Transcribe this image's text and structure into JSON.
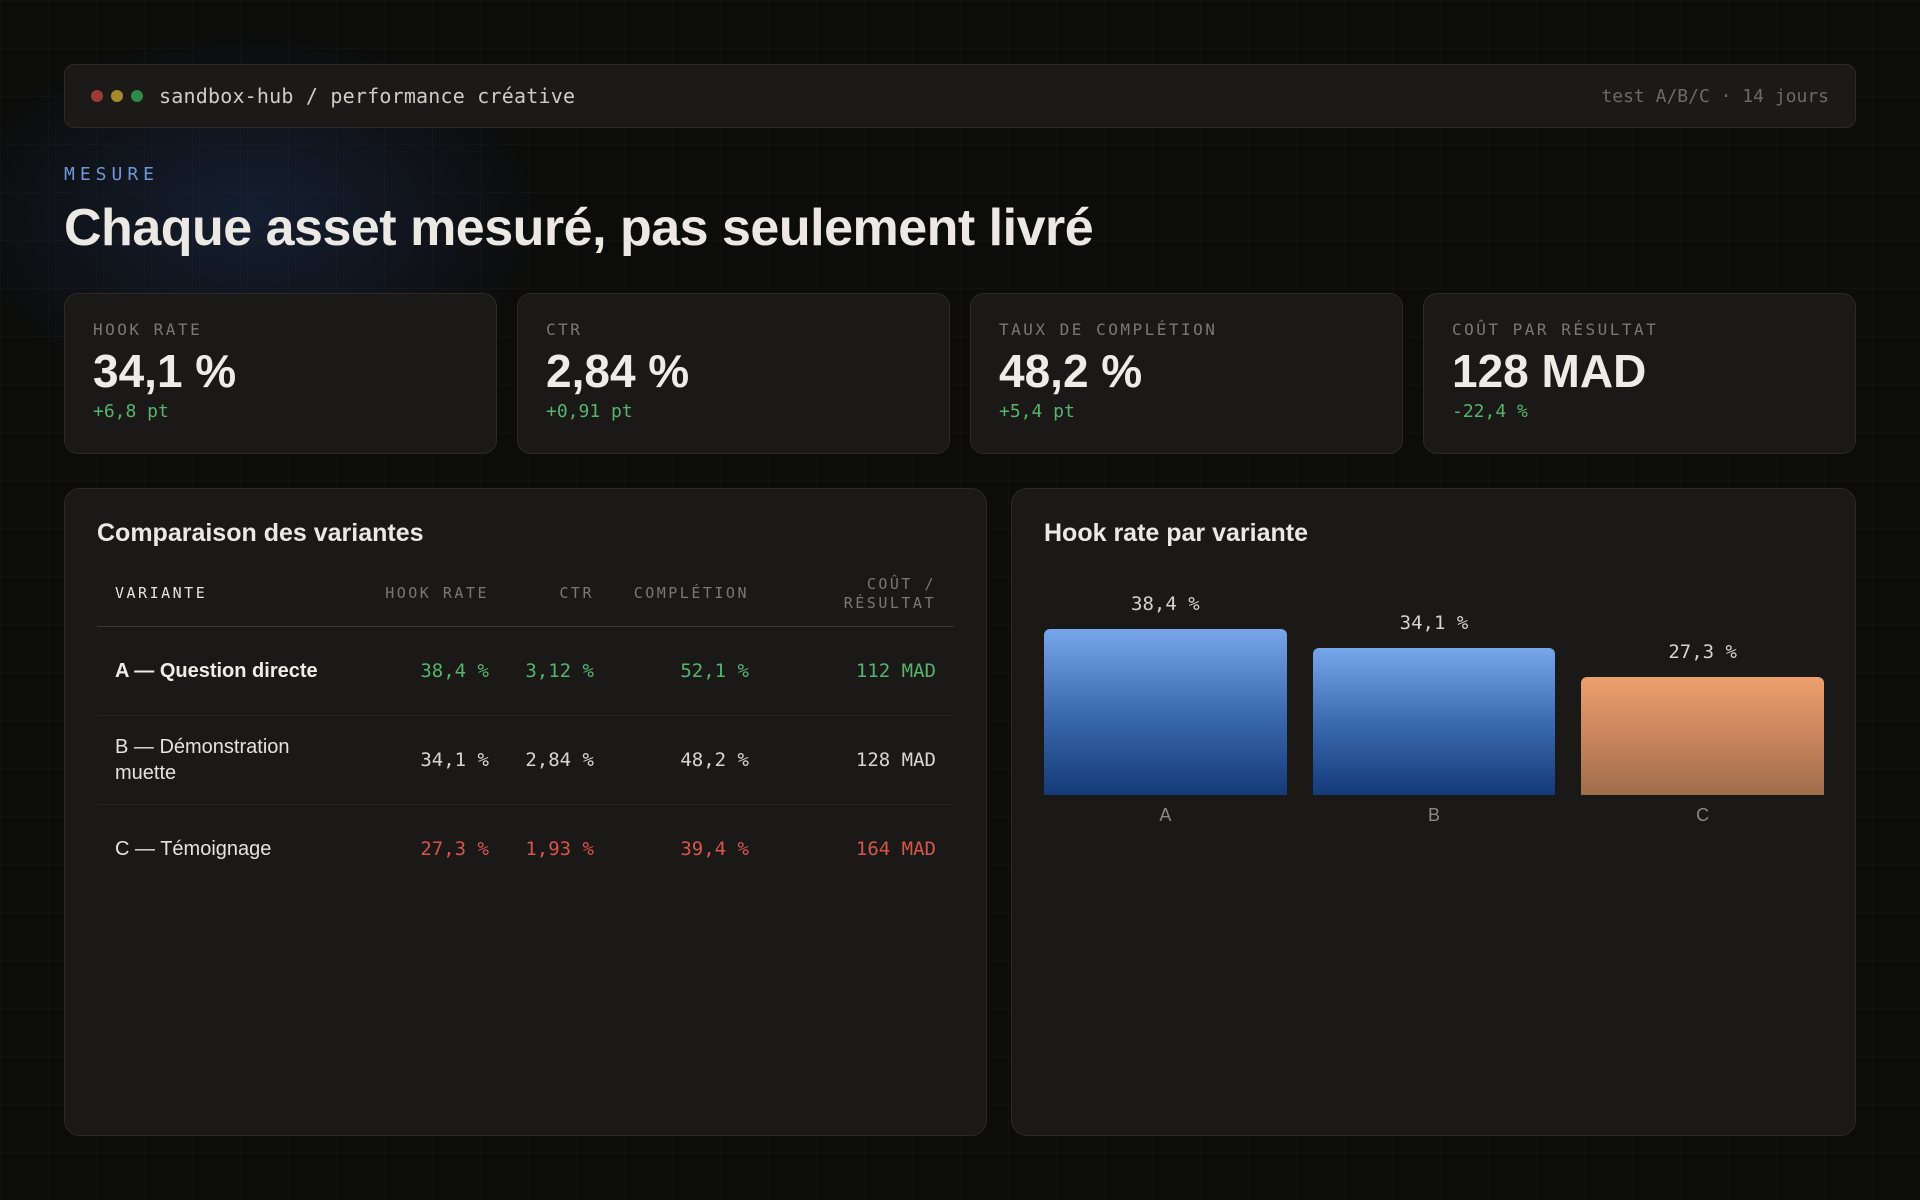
{
  "window": {
    "dots": [
      "red",
      "yellow",
      "green"
    ],
    "path": "sandbox-hub / performance créative",
    "meta": "test A/B/C · 14 jours"
  },
  "header": {
    "eyebrow": "MESURE",
    "title": "Chaque asset mesuré, pas seulement livré"
  },
  "kpis": [
    {
      "label": "HOOK RATE",
      "value": "34,1 %",
      "delta": "+6,8 pt"
    },
    {
      "label": "CTR",
      "value": "2,84 %",
      "delta": "+0,91 pt"
    },
    {
      "label": "TAUX DE COMPLÉTION",
      "value": "48,2 %",
      "delta": "+5,4 pt"
    },
    {
      "label": "COÛT PAR RÉSULTAT",
      "value": "128 MAD",
      "delta": "-22,4 %"
    }
  ],
  "comparison": {
    "title": "Comparaison des variantes",
    "columns": [
      "VARIANTE",
      "HOOK RATE",
      "CTR",
      "COMPLÉTION",
      "COÛT / RÉSULTAT"
    ],
    "rows": [
      {
        "name": "A — Question directe",
        "hook": "38,4 %",
        "ctr": "3,12 %",
        "completion": "52,1 %",
        "cost": "112 MAD",
        "status": "good"
      },
      {
        "name": "B — Démonstration muette",
        "hook": "34,1 %",
        "ctr": "2,84 %",
        "completion": "48,2 %",
        "cost": "128 MAD",
        "status": "neutral"
      },
      {
        "name": "C — Témoignage",
        "hook": "27,3 %",
        "ctr": "1,93 %",
        "completion": "39,4 %",
        "cost": "164 MAD",
        "status": "bad"
      }
    ]
  },
  "chart_panel": {
    "title": "Hook rate par variante"
  },
  "chart_data": {
    "type": "bar",
    "title": "Hook rate par variante",
    "categories": [
      "A",
      "B",
      "C"
    ],
    "values": [
      38.4,
      34.1,
      27.3
    ],
    "value_labels": [
      "38,4 %",
      "34,1 %",
      "27,3 %"
    ],
    "colors": [
      "#4f7fc6",
      "#4f7fc6",
      "#d58a5e"
    ],
    "ylim": [
      0,
      38.4
    ],
    "grid": false
  },
  "colors": {
    "accent": "#6f97d9",
    "positive": "#55b56b",
    "negative": "#d8554a"
  }
}
